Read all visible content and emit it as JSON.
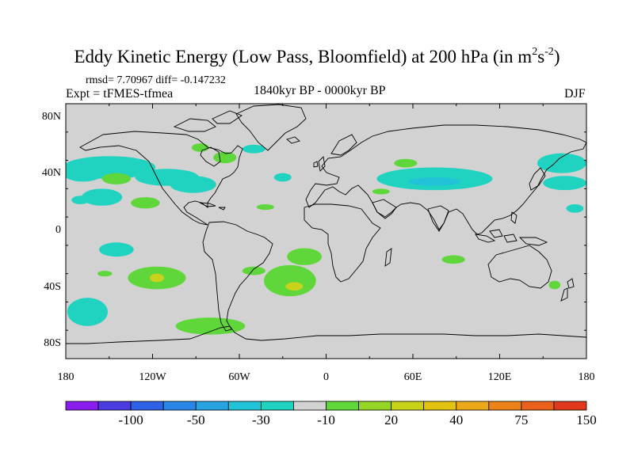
{
  "title": {
    "main": "Eddy Kinetic Energy (Low Pass, Bloomfield) at 200 hPa (in m",
    "sup1": "2",
    "mid": "s",
    "sup2": "-2",
    "close": ")"
  },
  "stats": {
    "rmsd": "rmsd= 7.70967 diff= -0.147232"
  },
  "expt": "Expt = tFMES-tfmea",
  "period": "1840kyr BP - 0000kyr BP",
  "season": "DJF",
  "axes": {
    "lat_labels": [
      {
        "text": "80N",
        "lat": 80
      },
      {
        "text": "40N",
        "lat": 40
      },
      {
        "text": "0",
        "lat": 0
      },
      {
        "text": "40S",
        "lat": -40
      },
      {
        "text": "80S",
        "lat": -80
      }
    ],
    "lon_labels": [
      {
        "text": "180",
        "lon": -180
      },
      {
        "text": "120W",
        "lon": -120
      },
      {
        "text": "60W",
        "lon": -60
      },
      {
        "text": "0",
        "lon": 0
      },
      {
        "text": "60E",
        "lon": 60
      },
      {
        "text": "120E",
        "lon": 120
      },
      {
        "text": "180",
        "lon": 180
      }
    ]
  },
  "colorbar": {
    "colors": [
      "#8a1df0",
      "#4a3ce0",
      "#2d62e6",
      "#2a86e6",
      "#26a3e0",
      "#22c3d9",
      "#20d2c0",
      "#d2d2d2",
      "#5fd63a",
      "#95d526",
      "#c8d21a",
      "#e2c30f",
      "#eea91a",
      "#ec8319",
      "#e86019",
      "#e0381a"
    ],
    "labels": [
      {
        "text": "-100",
        "index": 2
      },
      {
        "text": "-50",
        "index": 4
      },
      {
        "text": "-30",
        "index": 6
      },
      {
        "text": "-10",
        "index": 8
      },
      {
        "text": "20",
        "index": 10
      },
      {
        "text": "40",
        "index": 12
      },
      {
        "text": "75",
        "index": 14
      },
      {
        "text": "150",
        "index": 16
      }
    ]
  },
  "anomalies": [
    {
      "lon": -150,
      "lat": 45,
      "rlon": 32,
      "rlat": 8,
      "level": "neg1"
    },
    {
      "lon": -168,
      "lat": 41,
      "rlon": 14,
      "rlat": 6,
      "level": "neg1"
    },
    {
      "lon": -110,
      "lat": 38,
      "rlon": 22,
      "rlat": 6,
      "level": "neg1"
    },
    {
      "lon": -92,
      "lat": 33,
      "rlon": 16,
      "rlat": 6,
      "level": "neg1"
    },
    {
      "lon": -50,
      "lat": 58,
      "rlon": 8,
      "rlat": 3,
      "level": "neg1"
    },
    {
      "lon": -30,
      "lat": 38,
      "rlon": 6,
      "rlat": 3,
      "level": "neg1"
    },
    {
      "lon": -155,
      "lat": 24,
      "rlon": 14,
      "rlat": 6,
      "level": "neg1"
    },
    {
      "lon": -170,
      "lat": 22,
      "rlon": 6,
      "rlat": 3,
      "level": "neg1"
    },
    {
      "lon": -145,
      "lat": -13,
      "rlon": 12,
      "rlat": 5,
      "level": "neg1"
    },
    {
      "lon": -165,
      "lat": -57,
      "rlon": 14,
      "rlat": 10,
      "level": "neg1"
    },
    {
      "lon": 75,
      "lat": 37,
      "rlon": 40,
      "rlat": 8,
      "level": "neg1"
    },
    {
      "lon": 75,
      "lat": 35,
      "rlon": 18,
      "rlat": 3,
      "level": "neg2"
    },
    {
      "lon": 163,
      "lat": 48,
      "rlon": 17,
      "rlat": 7,
      "level": "neg1"
    },
    {
      "lon": 165,
      "lat": 34,
      "rlon": 15,
      "rlat": 5,
      "level": "neg1"
    },
    {
      "lon": 172,
      "lat": 16,
      "rlon": 6,
      "rlat": 3,
      "level": "neg1"
    },
    {
      "lon": -70,
      "lat": 52,
      "rlon": 8,
      "rlat": 4,
      "level": "pos1"
    },
    {
      "lon": -87,
      "lat": 59,
      "rlon": 6,
      "rlat": 3,
      "level": "pos1"
    },
    {
      "lon": -145,
      "lat": 37,
      "rlon": 10,
      "rlat": 4,
      "level": "pos1"
    },
    {
      "lon": -125,
      "lat": 20,
      "rlon": 10,
      "rlat": 4,
      "level": "pos1"
    },
    {
      "lon": -42,
      "lat": 17,
      "rlon": 6,
      "rlat": 2,
      "level": "pos1"
    },
    {
      "lon": 38,
      "lat": 28,
      "rlon": 6,
      "rlat": 2,
      "level": "pos1"
    },
    {
      "lon": 55,
      "lat": 48,
      "rlon": 8,
      "rlat": 3,
      "level": "pos1"
    },
    {
      "lon": -117,
      "lat": -33,
      "rlon": 20,
      "rlat": 8,
      "level": "pos1"
    },
    {
      "lon": -117,
      "lat": -33,
      "rlon": 5,
      "rlat": 3,
      "level": "pos2"
    },
    {
      "lon": -153,
      "lat": -30,
      "rlon": 5,
      "rlat": 2,
      "level": "pos1"
    },
    {
      "lon": -25,
      "lat": -35,
      "rlon": 18,
      "rlat": 11,
      "level": "pos1"
    },
    {
      "lon": -15,
      "lat": -18,
      "rlon": 12,
      "rlat": 6,
      "level": "pos1"
    },
    {
      "lon": -22,
      "lat": -39,
      "rlon": 6,
      "rlat": 3,
      "level": "pos2"
    },
    {
      "lon": -50,
      "lat": -28,
      "rlon": 8,
      "rlat": 3,
      "level": "pos1"
    },
    {
      "lon": -80,
      "lat": -67,
      "rlon": 24,
      "rlat": 6,
      "level": "pos1"
    },
    {
      "lon": 88,
      "lat": -20,
      "rlon": 8,
      "rlat": 3,
      "level": "pos1"
    },
    {
      "lon": 158,
      "lat": -38,
      "rlon": 4,
      "rlat": 3,
      "level": "pos1"
    }
  ]
}
